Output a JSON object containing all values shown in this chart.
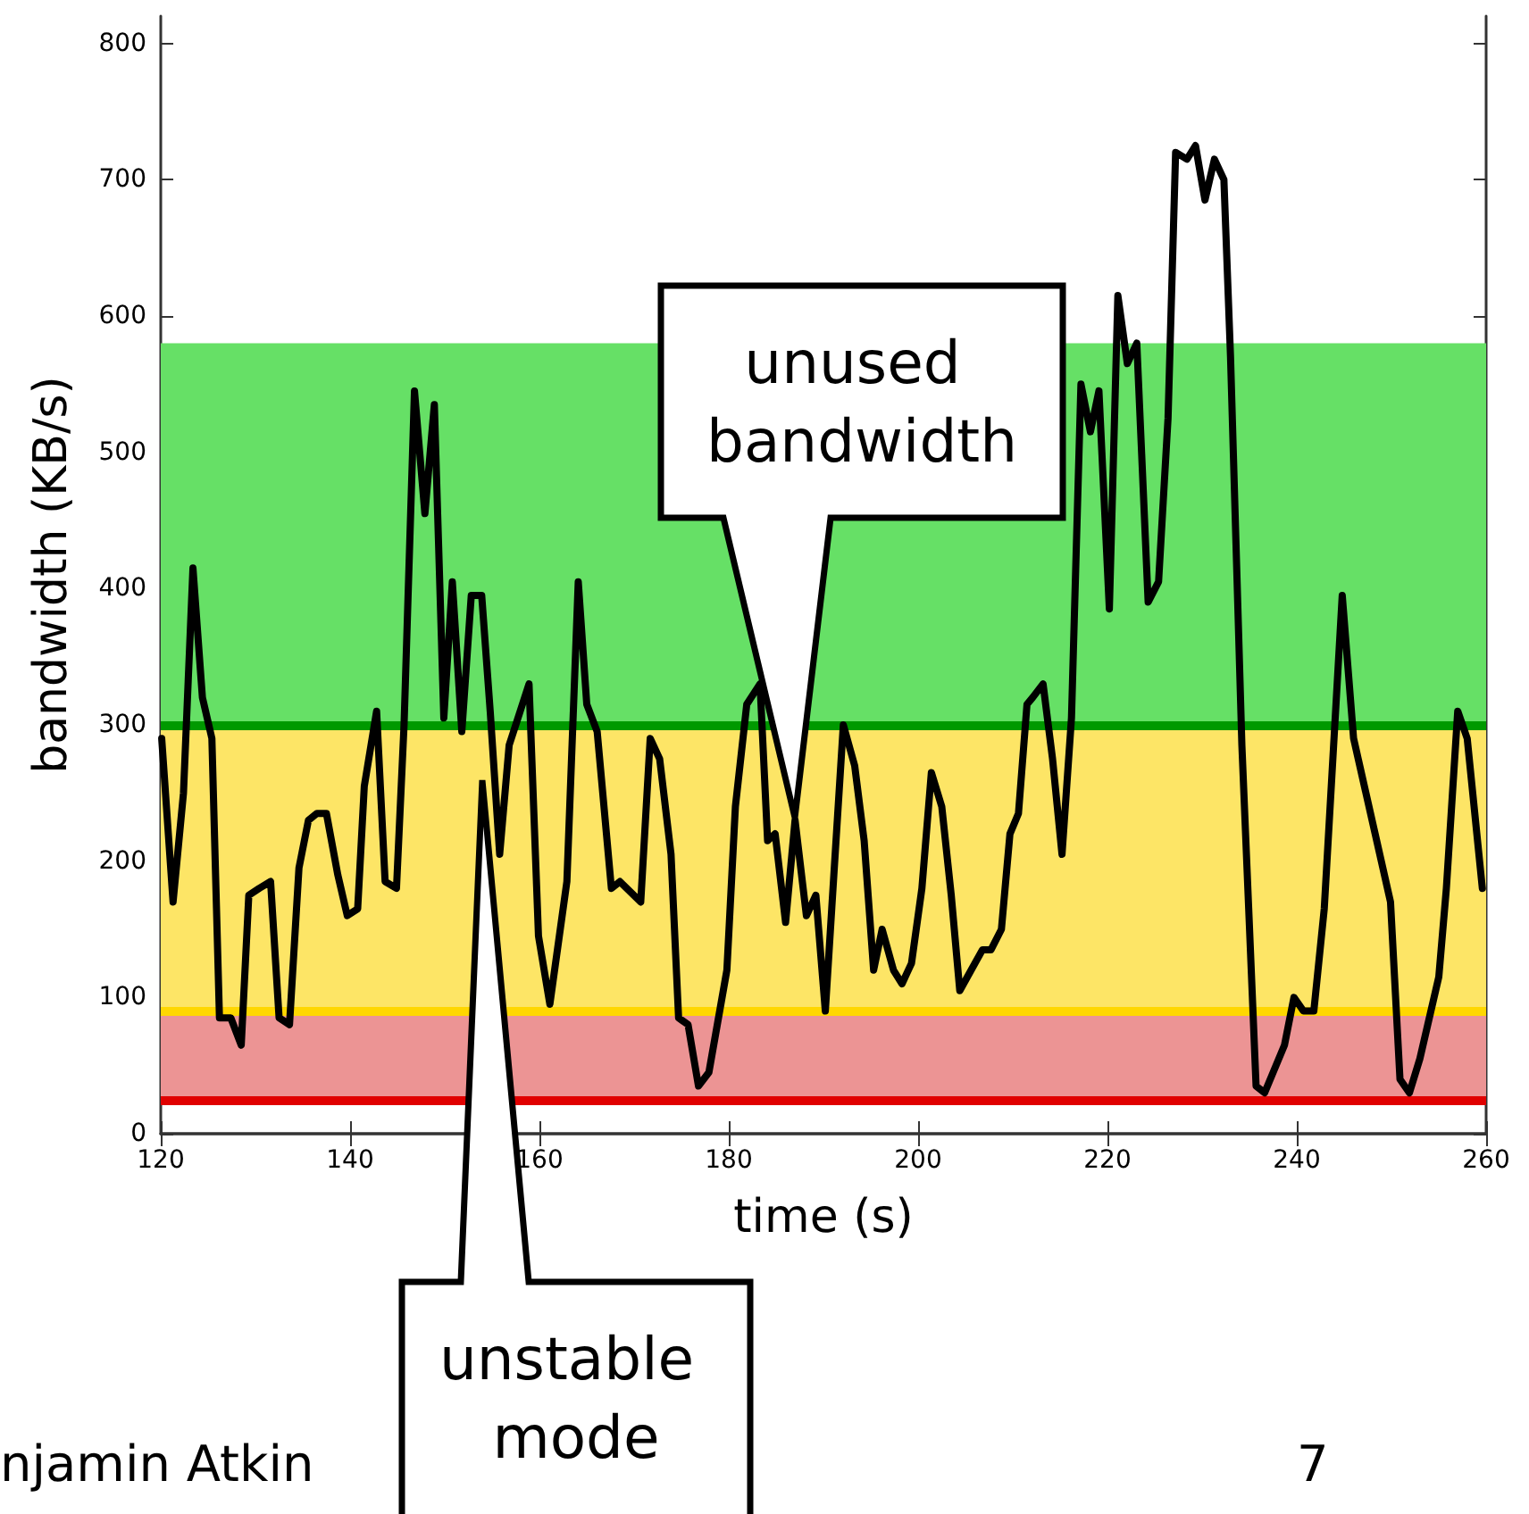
{
  "chart_data": {
    "type": "line",
    "xlabel": "time (s)",
    "ylabel": "bandwidth (KB/s)",
    "xlim": [
      120,
      260
    ],
    "xticks": [
      120,
      140,
      160,
      180,
      200,
      220,
      240,
      260
    ],
    "ylim": [
      0,
      820
    ],
    "yticks": [
      0,
      100,
      200,
      300,
      400,
      500,
      600,
      700,
      800
    ],
    "grid": false,
    "marker": "none",
    "line_style": "solid",
    "series": [
      {
        "color": "#000000",
        "x": [
          120.1,
          121.3,
          122.4,
          123.4,
          124.4,
          125.4,
          126.2,
          127.4,
          128.5,
          129.3,
          130.4,
          131.6,
          132.5,
          133.6,
          134.6,
          135.6,
          136.5,
          137.5,
          138.7,
          139.7,
          140.8,
          141.5,
          142.8,
          143.7,
          144.9,
          145.7,
          146.8,
          147.9,
          148.9,
          149.9,
          150.8,
          151.8,
          152.8,
          153.9,
          154.8,
          155.8,
          156.8,
          158.9,
          159.9,
          161.1,
          162.9,
          164.1,
          165.0,
          166.1,
          167.6,
          168.5,
          170.7,
          171.7,
          172.7,
          173.9,
          174.7,
          175.7,
          176.8,
          177.9,
          179.8,
          180.7,
          181.9,
          183.3,
          184.1,
          184.9,
          186.0,
          187.0,
          188.2,
          189.2,
          190.2,
          191.1,
          192.1,
          193.3,
          194.3,
          195.3,
          196.2,
          197.4,
          198.3,
          199.3,
          200.4,
          201.4,
          202.5,
          203.5,
          204.4,
          205.6,
          206.8,
          207.7,
          208.8,
          209.7,
          210.6,
          211.5,
          212.1,
          213.2,
          214.2,
          215.2,
          216.2,
          217.2,
          218.2,
          219.1,
          220.2,
          221.1,
          222.1,
          223.1,
          224.3,
          225.4,
          226.4,
          227.2,
          228.4,
          229.3,
          230.3,
          231.3,
          232.3,
          233.0,
          234.2,
          235.7,
          236.6,
          238.7,
          239.7,
          240.7,
          241.8,
          242.9,
          244.8,
          246.0,
          249.9,
          250.9,
          251.9,
          253.0,
          255.0,
          255.8,
          257.0,
          258.0,
          259.6
        ],
        "values": [
          290,
          170,
          250,
          415,
          320,
          290,
          85,
          85,
          65,
          175,
          180,
          185,
          85,
          80,
          195,
          230,
          235,
          235,
          190,
          160,
          165,
          255,
          310,
          185,
          180,
          300,
          545,
          455,
          535,
          305,
          405,
          295,
          395,
          395,
          310,
          205,
          285,
          330,
          145,
          95,
          185,
          405,
          315,
          295,
          180,
          185,
          170,
          290,
          275,
          205,
          85,
          80,
          35,
          45,
          120,
          240,
          315,
          330,
          215,
          220,
          155,
          230,
          160,
          175,
          90,
          190,
          300,
          270,
          215,
          120,
          150,
          120,
          110,
          125,
          180,
          265,
          240,
          175,
          105,
          120,
          135,
          135,
          150,
          220,
          235,
          315,
          320,
          330,
          275,
          205,
          305,
          550,
          515,
          545,
          385,
          615,
          565,
          580,
          390,
          405,
          525,
          720,
          715,
          725,
          685,
          715,
          700,
          570,
          285,
          35,
          30,
          65,
          100,
          90,
          90,
          165,
          395,
          290,
          170,
          40,
          30,
          55,
          115,
          180,
          310,
          290,
          180
        ]
      }
    ],
    "bands": [
      {
        "axis": "y",
        "from": 25,
        "to": 87,
        "color": "#ec9494"
      },
      {
        "axis": "y",
        "from": 90,
        "to": 300,
        "color": "#fde566"
      },
      {
        "axis": "y",
        "from": 300,
        "to": 580,
        "color": "#66e066"
      }
    ],
    "ref_lines": [
      {
        "axis": "y",
        "value": 25,
        "color": "#e00000",
        "line_style": "solid"
      },
      {
        "axis": "y",
        "value": 90,
        "color": "#ffd700",
        "line_style": "solid"
      },
      {
        "axis": "y",
        "value": 300,
        "color": "#009900",
        "line_style": "solid"
      }
    ],
    "annotations": [
      "unused bandwidth",
      "unstable mode",
      "njamin Atkin",
      "7"
    ]
  }
}
